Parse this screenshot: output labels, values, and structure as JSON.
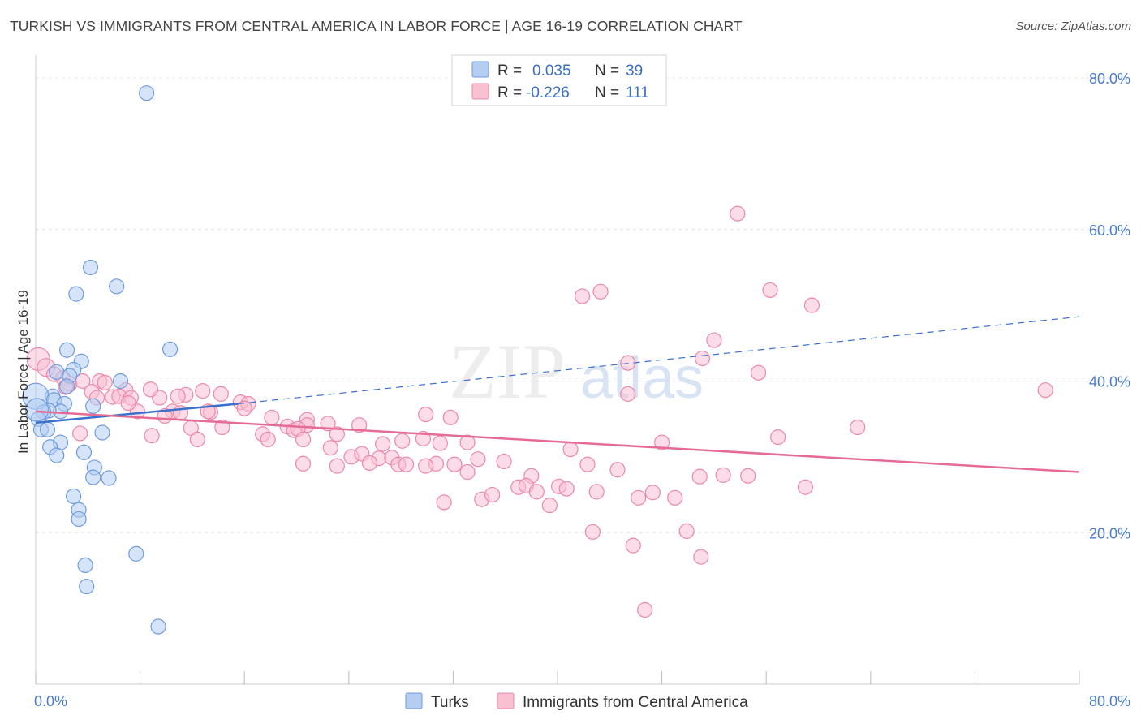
{
  "header": {
    "title": "TURKISH VS IMMIGRANTS FROM CENTRAL AMERICA IN LABOR FORCE | AGE 16-19 CORRELATION CHART",
    "source": "Source: ZipAtlas.com"
  },
  "watermark": {
    "zip": "ZIP",
    "atlas": "atlas"
  },
  "colors": {
    "turks_fill": "#b3cdf3",
    "turks_stroke": "#6f9be0",
    "turks_line": "#3a70cc",
    "central_fill": "#f9c0d2",
    "central_stroke": "#ec88a8",
    "central_line": "#e56b95",
    "value_text": "#3a6fc4",
    "grid": "#e3e3e3"
  },
  "chart_data": {
    "type": "scatter",
    "title": "TURKISH VS IMMIGRANTS FROM CENTRAL AMERICA IN LABOR FORCE | AGE 16-19 CORRELATION CHART",
    "xlabel": "",
    "ylabel": "In Labor Force | Age 16-19",
    "xlim": [
      0,
      80
    ],
    "ylim": [
      0,
      83
    ],
    "x_tick_labels": [
      "0.0%",
      "80.0%"
    ],
    "y_ticks": [
      20,
      40,
      60,
      80
    ],
    "y_tick_labels": [
      "20.0%",
      "40.0%",
      "60.0%",
      "80.0%"
    ],
    "grid": true,
    "legend_position": "top-center",
    "legend_stats": [
      {
        "r_label": "R =",
        "r_value": "0.035",
        "n_label": "N =",
        "n_value": "39"
      },
      {
        "r_label": "R =",
        "r_value": "-0.226",
        "n_label": "N =",
        "n_value": "111"
      }
    ],
    "series": [
      {
        "name": "Turks",
        "trend": {
          "solid": [
            [
              0,
              34.5
            ],
            [
              15.5,
              37.0
            ]
          ],
          "dashed": [
            [
              15.5,
              37.0
            ],
            [
              80,
              48.5
            ]
          ]
        },
        "points": [
          [
            8.5,
            78
          ],
          [
            4.2,
            55
          ],
          [
            6.2,
            52.5
          ],
          [
            3.1,
            51.5
          ],
          [
            10.3,
            44.2
          ],
          [
            2.4,
            44.1
          ],
          [
            3.5,
            42.6
          ],
          [
            1.6,
            41.2
          ],
          [
            2.9,
            41.5
          ],
          [
            2.6,
            40.7
          ],
          [
            6.5,
            40.0
          ],
          [
            2.4,
            39.3
          ],
          [
            1.3,
            38.0
          ],
          [
            0.0,
            38.0
          ],
          [
            1.4,
            37.5
          ],
          [
            2.2,
            37.0
          ],
          [
            4.4,
            36.7
          ],
          [
            1.9,
            36.0
          ],
          [
            1.0,
            36.1
          ],
          [
            0.6,
            35.9
          ],
          [
            0.2,
            35.0
          ],
          [
            0.4,
            33.6
          ],
          [
            0.9,
            33.6
          ],
          [
            5.1,
            33.2
          ],
          [
            1.9,
            31.9
          ],
          [
            1.1,
            31.3
          ],
          [
            3.7,
            30.6
          ],
          [
            1.6,
            30.2
          ],
          [
            4.5,
            28.6
          ],
          [
            4.4,
            27.3
          ],
          [
            5.6,
            27.2
          ],
          [
            2.9,
            24.8
          ],
          [
            3.3,
            23.0
          ],
          [
            3.3,
            21.8
          ],
          [
            7.7,
            17.2
          ],
          [
            3.8,
            15.7
          ],
          [
            3.9,
            12.9
          ],
          [
            9.4,
            7.6
          ],
          [
            0.1,
            36.2
          ]
        ],
        "sizes": [
          9,
          9,
          9,
          9,
          9,
          9,
          9,
          9,
          9,
          9,
          9,
          9,
          9,
          16,
          9,
          9,
          9,
          9,
          9,
          9,
          9,
          9,
          9,
          9,
          9,
          9,
          9,
          9,
          9,
          9,
          9,
          9,
          9,
          9,
          9,
          9,
          9,
          9,
          14
        ]
      },
      {
        "name": "Immigrants from Central America",
        "trend": {
          "solid": [
            [
              0,
              36.0
            ],
            [
              80,
              28.0
            ]
          ]
        },
        "points": [
          [
            53.8,
            62.1
          ],
          [
            41.9,
            51.2
          ],
          [
            43.3,
            51.8
          ],
          [
            56.3,
            52.0
          ],
          [
            59.5,
            50.0
          ],
          [
            52.0,
            45.4
          ],
          [
            51.1,
            43.0
          ],
          [
            45.4,
            42.4
          ],
          [
            55.4,
            41.1
          ],
          [
            77.4,
            38.8
          ],
          [
            45.4,
            38.3
          ],
          [
            0.2,
            42.9
          ],
          [
            0.8,
            41.8
          ],
          [
            1.4,
            40.9
          ],
          [
            2.1,
            40.4
          ],
          [
            2.6,
            39.6
          ],
          [
            4.9,
            40.0
          ],
          [
            3.6,
            40.0
          ],
          [
            6.9,
            38.8
          ],
          [
            14.2,
            38.3
          ],
          [
            4.3,
            38.6
          ],
          [
            5.9,
            37.9
          ],
          [
            6.4,
            38.0
          ],
          [
            7.3,
            37.8
          ],
          [
            9.5,
            37.8
          ],
          [
            11.5,
            38.2
          ],
          [
            12.8,
            38.7
          ],
          [
            15.7,
            37.2
          ],
          [
            16.3,
            37.0
          ],
          [
            16.0,
            36.4
          ],
          [
            7.8,
            36.0
          ],
          [
            10.5,
            36.0
          ],
          [
            9.9,
            35.4
          ],
          [
            11.1,
            35.8
          ],
          [
            13.4,
            35.9
          ],
          [
            18.1,
            35.2
          ],
          [
            20.8,
            34.9
          ],
          [
            20.8,
            34.2
          ],
          [
            19.3,
            34.0
          ],
          [
            19.8,
            33.5
          ],
          [
            20.1,
            33.7
          ],
          [
            24.8,
            34.2
          ],
          [
            22.4,
            34.4
          ],
          [
            11.9,
            33.8
          ],
          [
            14.3,
            33.9
          ],
          [
            17.4,
            33.0
          ],
          [
            23.1,
            33.0
          ],
          [
            29.9,
            35.6
          ],
          [
            31.8,
            35.2
          ],
          [
            33.1,
            31.9
          ],
          [
            28.1,
            32.1
          ],
          [
            8.9,
            32.8
          ],
          [
            3.4,
            33.1
          ],
          [
            12.4,
            32.3
          ],
          [
            17.8,
            32.3
          ],
          [
            20.5,
            32.3
          ],
          [
            29.7,
            32.4
          ],
          [
            31.0,
            31.8
          ],
          [
            26.6,
            31.7
          ],
          [
            22.6,
            31.2
          ],
          [
            41.0,
            31.0
          ],
          [
            48.0,
            31.9
          ],
          [
            56.9,
            32.6
          ],
          [
            63.0,
            33.9
          ],
          [
            24.2,
            30.0
          ],
          [
            25.0,
            30.4
          ],
          [
            26.3,
            29.8
          ],
          [
            27.3,
            29.9
          ],
          [
            30.7,
            29.1
          ],
          [
            33.9,
            29.7
          ],
          [
            35.9,
            29.4
          ],
          [
            20.5,
            29.1
          ],
          [
            23.1,
            28.8
          ],
          [
            25.6,
            29.2
          ],
          [
            27.8,
            29.0
          ],
          [
            28.4,
            29.0
          ],
          [
            29.9,
            28.8
          ],
          [
            32.1,
            29.0
          ],
          [
            33.1,
            28.0
          ],
          [
            42.3,
            29.0
          ],
          [
            44.6,
            28.3
          ],
          [
            38.0,
            27.5
          ],
          [
            50.9,
            27.4
          ],
          [
            52.7,
            27.6
          ],
          [
            54.6,
            27.5
          ],
          [
            40.1,
            26.1
          ],
          [
            40.7,
            25.8
          ],
          [
            37.0,
            26.0
          ],
          [
            37.6,
            26.2
          ],
          [
            38.4,
            25.4
          ],
          [
            39.4,
            23.6
          ],
          [
            43.0,
            25.4
          ],
          [
            46.2,
            24.6
          ],
          [
            47.3,
            25.3
          ],
          [
            49.0,
            24.6
          ],
          [
            34.2,
            24.4
          ],
          [
            35.0,
            25.0
          ],
          [
            31.3,
            24.0
          ],
          [
            59.0,
            26.0
          ],
          [
            42.7,
            20.1
          ],
          [
            45.8,
            18.3
          ],
          [
            49.9,
            20.2
          ],
          [
            51.0,
            16.8
          ],
          [
            46.7,
            9.8
          ],
          [
            8.8,
            38.9
          ],
          [
            10.9,
            38.0
          ],
          [
            5.3,
            39.8
          ],
          [
            2.3,
            39.2
          ],
          [
            7.1,
            37.1
          ],
          [
            13.2,
            36.0
          ],
          [
            4.7,
            37.8
          ]
        ],
        "sizes": [
          9,
          9,
          9,
          9,
          9,
          9,
          9,
          9,
          9,
          9,
          9,
          14,
          11,
          9,
          9,
          9,
          9,
          9,
          9,
          9,
          9,
          9,
          9,
          9,
          9,
          9,
          9,
          9,
          9,
          9,
          9,
          9,
          9,
          9,
          9,
          9,
          9,
          9,
          9,
          9,
          9,
          9,
          9,
          9,
          9,
          9,
          9,
          9,
          9,
          9,
          9,
          9,
          9,
          9,
          9,
          9,
          9,
          9,
          9,
          9,
          9,
          9,
          9,
          9,
          9,
          9,
          9,
          9,
          9,
          9,
          9,
          9,
          9,
          9,
          9,
          9,
          9,
          9,
          9,
          9,
          9,
          9,
          9,
          9,
          9,
          9,
          9,
          9,
          9,
          9,
          9,
          9,
          9,
          9,
          9,
          9,
          9,
          9,
          9,
          9,
          9,
          9,
          9,
          9,
          9,
          9,
          9,
          9,
          9,
          9,
          9
        ]
      }
    ]
  }
}
